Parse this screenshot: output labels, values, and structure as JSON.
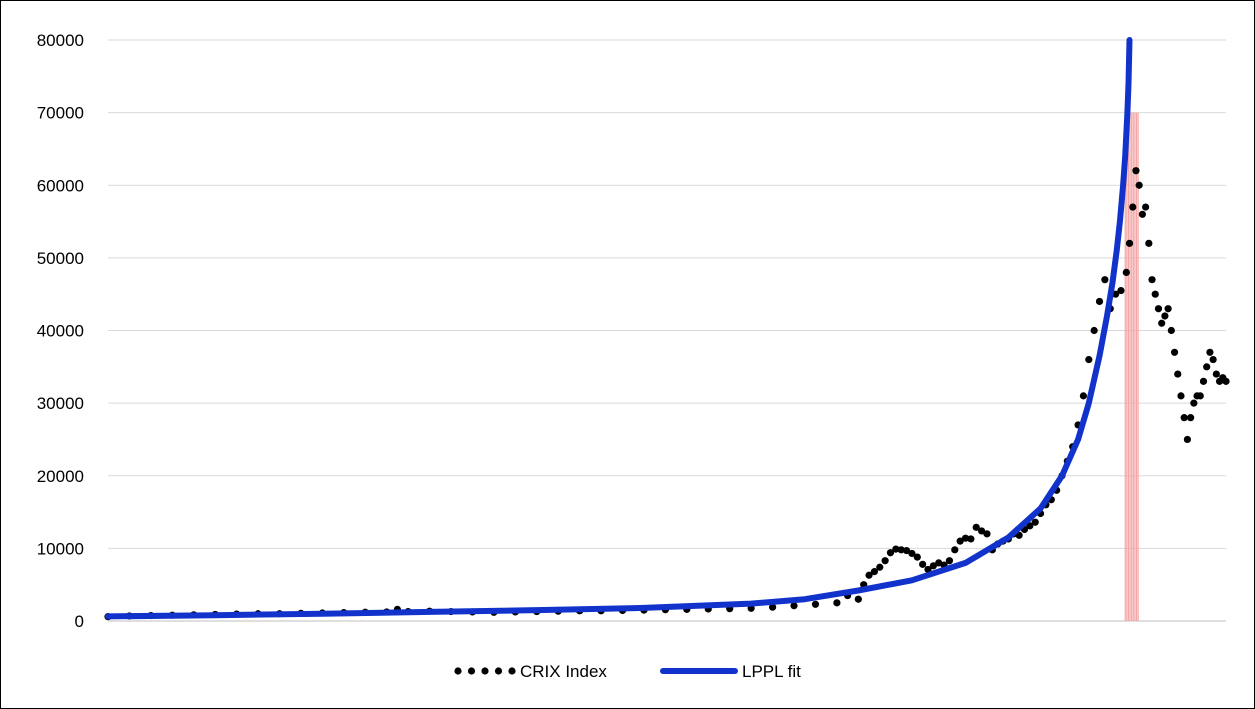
{
  "chart_data": {
    "type": "line",
    "title": "",
    "xlabel": "",
    "ylabel": "",
    "ylim": [
      0,
      80000
    ],
    "yticks": [
      0,
      10000,
      20000,
      30000,
      40000,
      50000,
      60000,
      70000,
      80000
    ],
    "ytick_labels": [
      "0",
      "10000",
      "20000",
      "30000",
      "40000",
      "50000",
      "60000",
      "70000",
      "80000"
    ],
    "grid": "horizontal",
    "legend_placement": "bottom-center",
    "x_axis_labels": "none",
    "series": [
      {
        "name": "CRIX Index",
        "style": "dots",
        "color": "#000000",
        "points": [
          [
            0,
            600
          ],
          [
            20,
            700
          ],
          [
            40,
            750
          ],
          [
            60,
            800
          ],
          [
            80,
            850
          ],
          [
            100,
            900
          ],
          [
            120,
            950
          ],
          [
            140,
            1000
          ],
          [
            160,
            1000
          ],
          [
            180,
            1050
          ],
          [
            200,
            1100
          ],
          [
            220,
            1150
          ],
          [
            240,
            1200
          ],
          [
            260,
            1250
          ],
          [
            270,
            1600
          ],
          [
            280,
            1300
          ],
          [
            300,
            1350
          ],
          [
            320,
            1300
          ],
          [
            340,
            1250
          ],
          [
            360,
            1200
          ],
          [
            380,
            1250
          ],
          [
            400,
            1300
          ],
          [
            420,
            1350
          ],
          [
            440,
            1400
          ],
          [
            460,
            1400
          ],
          [
            480,
            1450
          ],
          [
            500,
            1500
          ],
          [
            520,
            1550
          ],
          [
            540,
            1600
          ],
          [
            560,
            1650
          ],
          [
            580,
            1700
          ],
          [
            600,
            1750
          ],
          [
            620,
            1900
          ],
          [
            640,
            2100
          ],
          [
            660,
            2300
          ],
          [
            680,
            2500
          ],
          [
            690,
            3500
          ],
          [
            700,
            3000
          ],
          [
            705,
            5000
          ],
          [
            710,
            6300
          ],
          [
            715,
            6800
          ],
          [
            720,
            7400
          ],
          [
            725,
            8300
          ],
          [
            730,
            9400
          ],
          [
            735,
            9900
          ],
          [
            740,
            9800
          ],
          [
            745,
            9700
          ],
          [
            750,
            9300
          ],
          [
            755,
            8800
          ],
          [
            760,
            7800
          ],
          [
            765,
            7100
          ],
          [
            770,
            7600
          ],
          [
            775,
            8000
          ],
          [
            780,
            7700
          ],
          [
            785,
            8300
          ],
          [
            790,
            9800
          ],
          [
            795,
            11000
          ],
          [
            800,
            11400
          ],
          [
            805,
            11300
          ],
          [
            810,
            12900
          ],
          [
            815,
            12400
          ],
          [
            820,
            12000
          ],
          [
            825,
            9800
          ],
          [
            830,
            10600
          ],
          [
            835,
            11000
          ],
          [
            840,
            11300
          ],
          [
            845,
            12000
          ],
          [
            850,
            11800
          ],
          [
            855,
            12600
          ],
          [
            860,
            13100
          ],
          [
            865,
            13600
          ],
          [
            870,
            14800
          ],
          [
            875,
            16000
          ],
          [
            880,
            16700
          ],
          [
            885,
            18000
          ],
          [
            890,
            20000
          ],
          [
            895,
            22000
          ],
          [
            900,
            24000
          ],
          [
            905,
            27000
          ],
          [
            910,
            31000
          ],
          [
            915,
            36000
          ],
          [
            920,
            40000
          ],
          [
            925,
            44000
          ],
          [
            930,
            47000
          ],
          [
            935,
            43000
          ],
          [
            940,
            45000
          ],
          [
            945,
            45500
          ],
          [
            950,
            48000
          ],
          [
            953,
            52000
          ],
          [
            956,
            57000
          ],
          [
            959,
            62000
          ],
          [
            962,
            60000
          ],
          [
            965,
            56000
          ],
          [
            968,
            57000
          ],
          [
            971,
            52000
          ],
          [
            974,
            47000
          ],
          [
            977,
            45000
          ],
          [
            980,
            43000
          ],
          [
            983,
            41000
          ],
          [
            986,
            42000
          ],
          [
            989,
            43000
          ],
          [
            992,
            40000
          ],
          [
            995,
            37000
          ],
          [
            998,
            34000
          ],
          [
            1001,
            31000
          ],
          [
            1004,
            28000
          ],
          [
            1007,
            25000
          ],
          [
            1010,
            28000
          ],
          [
            1013,
            30000
          ],
          [
            1016,
            31000
          ],
          [
            1019,
            31000
          ],
          [
            1022,
            33000
          ],
          [
            1025,
            35000
          ],
          [
            1028,
            37000
          ],
          [
            1031,
            36000
          ],
          [
            1034,
            34000
          ],
          [
            1037,
            33000
          ],
          [
            1040,
            33500
          ],
          [
            1043,
            33000
          ]
        ]
      },
      {
        "name": "LPPL fit",
        "style": "line",
        "color": "#1133CC",
        "critical_x": 953,
        "points": [
          [
            0,
            640
          ],
          [
            100,
            800
          ],
          [
            200,
            1000
          ],
          [
            300,
            1250
          ],
          [
            400,
            1500
          ],
          [
            500,
            1800
          ],
          [
            600,
            2400
          ],
          [
            650,
            3000
          ],
          [
            700,
            4200
          ],
          [
            750,
            5600
          ],
          [
            800,
            8000
          ],
          [
            840,
            11500
          ],
          [
            870,
            15500
          ],
          [
            890,
            20000
          ],
          [
            905,
            25000
          ],
          [
            915,
            30000
          ],
          [
            925,
            36500
          ],
          [
            932,
            42000
          ],
          [
            937,
            46500
          ],
          [
            941,
            51000
          ],
          [
            944,
            55000
          ],
          [
            947,
            60000
          ],
          [
            949,
            64000
          ],
          [
            950,
            67000
          ],
          [
            951,
            70000
          ],
          [
            952,
            74000
          ],
          [
            953,
            80000
          ]
        ]
      }
    ],
    "annotations": [
      {
        "type": "critical-time-band",
        "color": "#F4A6A6",
        "x_start": 949,
        "x_end": 961,
        "y_top": 70000
      }
    ],
    "x_domain": [
      0,
      1043
    ]
  }
}
